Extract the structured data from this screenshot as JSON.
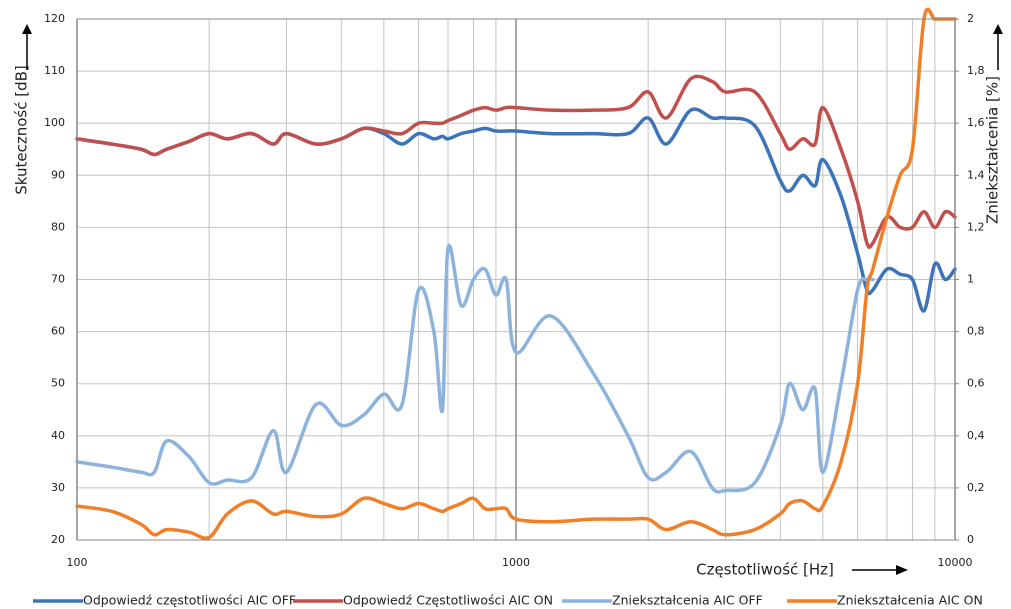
{
  "chart_data": {
    "type": "line",
    "x_label": "Częstotliwość [Hz]",
    "y_label": "Skuteczność [dB]",
    "y2_label": "Zniekształcenia [%]",
    "x_log": true,
    "grid": true,
    "legend": "bottom",
    "xlim": [
      100,
      10000
    ],
    "xticks": [
      100,
      1000,
      10000
    ],
    "ylim": [
      20,
      120
    ],
    "yticks": [
      20,
      30,
      40,
      50,
      60,
      70,
      80,
      90,
      100,
      110,
      120
    ],
    "y2lim": [
      0,
      2
    ],
    "y2ticks": [
      0,
      {
        "value": 0.2,
        "label": "0,2"
      },
      {
        "value": 0.4,
        "label": "0,4"
      },
      {
        "value": 0.6,
        "label": "0,6"
      },
      {
        "value": 0.8,
        "label": "0,8"
      },
      1,
      {
        "value": 1.2,
        "label": "1,2"
      },
      {
        "value": 1.4,
        "label": "1,4"
      },
      {
        "value": 1.6,
        "label": "1,6"
      },
      {
        "value": 1.8,
        "label": "1,8"
      },
      2
    ],
    "x": [
      100,
      120,
      140,
      150,
      160,
      180,
      200,
      220,
      250,
      280,
      300,
      350,
      400,
      450,
      500,
      550,
      600,
      650,
      680,
      700,
      750,
      800,
      850,
      900,
      950,
      1000,
      1200,
      1500,
      1800,
      2000,
      2200,
      2500,
      2800,
      3000,
      3500,
      4000,
      4200,
      4500,
      4800,
      5000,
      5500,
      6000,
      6300,
      6500,
      7000,
      7500,
      8000,
      8500,
      9000,
      9500,
      10000
    ],
    "series": [
      {
        "name": "Odpowiedź częstotliwości AIC OFF",
        "color": "#3d73b9",
        "values": [
          97,
          96,
          95,
          94,
          95,
          96.5,
          98,
          97,
          98,
          96,
          98,
          96,
          97,
          99,
          98,
          96,
          98,
          97,
          97.5,
          97,
          98,
          98.5,
          99,
          98.5,
          98.5,
          98.5,
          98,
          98,
          98,
          101,
          96,
          102.5,
          101,
          101,
          99.5,
          89,
          87,
          90,
          88,
          93,
          86,
          75,
          68,
          68,
          72,
          71,
          70,
          64,
          73,
          70,
          72
        ]
      },
      {
        "name": "Odpowiedź Częstotliwości AIC ON",
        "color": "#c0504d",
        "values": [
          97,
          96,
          95,
          94,
          95,
          96.5,
          98,
          97,
          98,
          96,
          98,
          96,
          97,
          99,
          98.5,
          98,
          100,
          100,
          100,
          100.5,
          101.5,
          102.5,
          103,
          102.5,
          103,
          103,
          102.5,
          102.5,
          103,
          106,
          101,
          108.5,
          108,
          106,
          106,
          98,
          95,
          97,
          96,
          103,
          95,
          85,
          77,
          77,
          82,
          80,
          80,
          83,
          80,
          83,
          82
        ]
      },
      {
        "name": "Zniekształcenia AIC OFF",
        "color": "#8db3dd",
        "axis": "y2",
        "values": [
          0.3,
          0.28,
          0.26,
          0.26,
          0.38,
          0.32,
          0.22,
          0.23,
          0.24,
          0.42,
          0.26,
          0.52,
          0.44,
          0.48,
          0.56,
          0.52,
          0.96,
          0.8,
          0.5,
          1.12,
          0.9,
          1.0,
          1.04,
          0.94,
          1.0,
          0.72,
          0.86,
          0.64,
          0.4,
          0.24,
          0.26,
          0.34,
          0.2,
          0.19,
          0.22,
          0.44,
          0.6,
          0.5,
          0.58,
          0.26,
          0.6,
          0.96,
          1.0,
          1.0,
          null,
          null,
          null,
          null,
          null,
          null,
          null
        ]
      },
      {
        "name": "Zniekształcenia AIC ON",
        "color": "#f07f2a",
        "axis": "y2",
        "values": [
          0.13,
          0.11,
          0.06,
          0.02,
          0.04,
          0.03,
          0.01,
          0.1,
          0.15,
          0.1,
          0.11,
          0.09,
          0.1,
          0.16,
          0.14,
          0.12,
          0.14,
          0.12,
          0.11,
          0.12,
          0.14,
          0.16,
          0.12,
          0.12,
          0.12,
          0.08,
          0.07,
          0.08,
          0.08,
          0.08,
          0.04,
          0.07,
          0.04,
          0.02,
          0.04,
          0.1,
          0.14,
          0.15,
          0.12,
          0.13,
          0.3,
          0.6,
          0.96,
          1.04,
          1.24,
          1.4,
          1.5,
          2,
          2,
          2,
          2
        ]
      }
    ]
  }
}
